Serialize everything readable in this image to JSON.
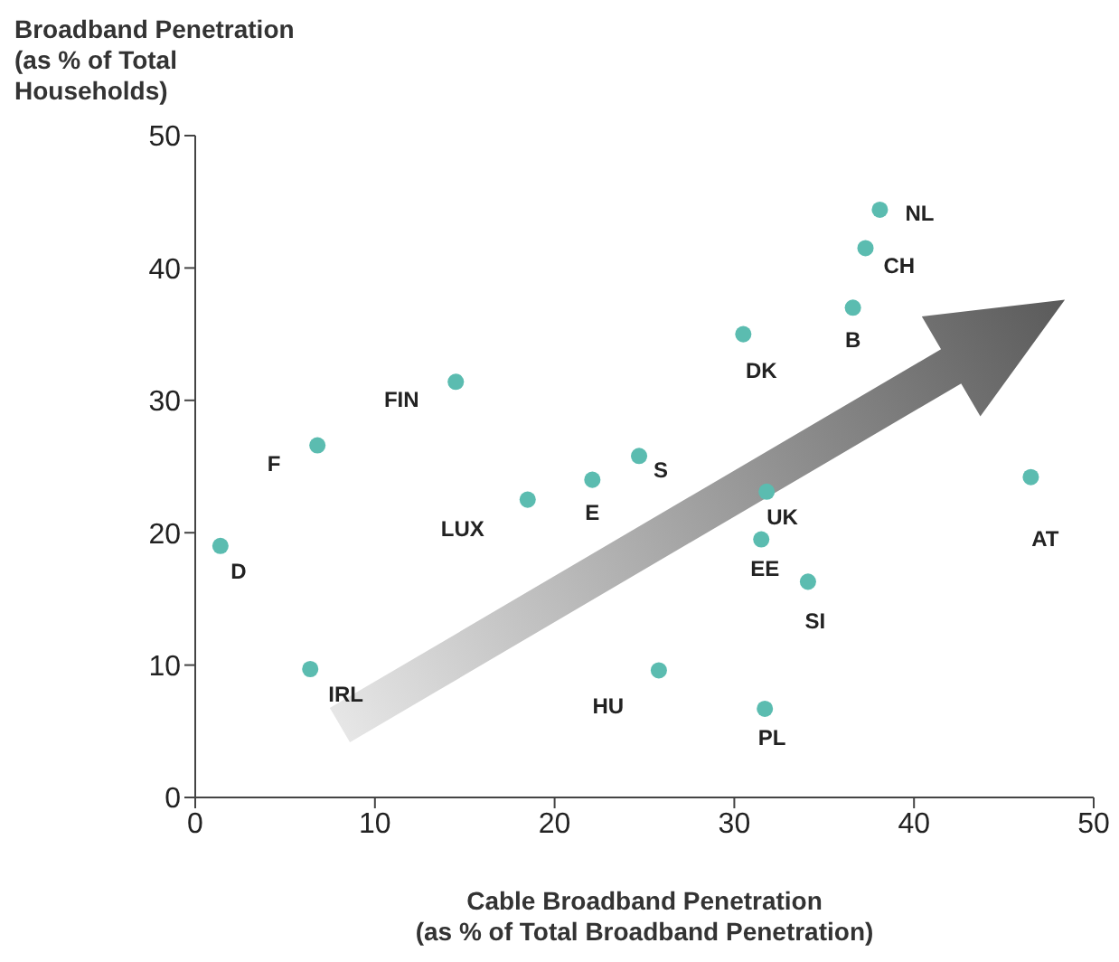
{
  "chart_data": {
    "type": "scatter",
    "xlabel": "Cable Broadband Penetration\n(as % of Total Broadband Penetration)",
    "ylabel": "Broadband Penetration\n(as % of Total\nHouseholds)",
    "x": [
      38.1,
      37.3,
      36.6,
      30.5,
      14.5,
      6.8,
      1.4,
      18.5,
      22.1,
      24.7,
      31.8,
      31.5,
      34.1,
      46.5,
      6.4,
      25.8,
      31.7
    ],
    "values": [
      44.4,
      41.5,
      37.0,
      35.0,
      31.4,
      26.6,
      19.0,
      22.5,
      24.0,
      25.8,
      23.1,
      19.5,
      16.3,
      24.2,
      9.7,
      9.6,
      6.7
    ],
    "annotations": [
      {
        "text": "NL",
        "x": 38.1,
        "y": 44.4
      },
      {
        "text": "CH",
        "x": 37.3,
        "y": 41.5
      },
      {
        "text": "B",
        "x": 36.6,
        "y": 37.0
      },
      {
        "text": "DK",
        "x": 30.5,
        "y": 35.0
      },
      {
        "text": "FIN",
        "x": 14.5,
        "y": 31.4
      },
      {
        "text": "F",
        "x": 6.8,
        "y": 26.6
      },
      {
        "text": "D",
        "x": 1.4,
        "y": 19.0
      },
      {
        "text": "LUX",
        "x": 18.5,
        "y": 22.5
      },
      {
        "text": "E",
        "x": 22.1,
        "y": 24.0
      },
      {
        "text": "S",
        "x": 24.7,
        "y": 25.8
      },
      {
        "text": "UK",
        "x": 31.8,
        "y": 23.1
      },
      {
        "text": "EE",
        "x": 31.5,
        "y": 19.5
      },
      {
        "text": "SI",
        "x": 34.1,
        "y": 16.3
      },
      {
        "text": "AT",
        "x": 46.5,
        "y": 24.2
      },
      {
        "text": "IRL",
        "x": 6.4,
        "y": 9.7
      },
      {
        "text": "HU",
        "x": 25.8,
        "y": 9.6
      },
      {
        "text": "PL",
        "x": 31.7,
        "y": 6.7
      }
    ],
    "color": "#5bbcb0",
    "marker": "circle",
    "xlim": [
      0,
      50
    ],
    "xticks": [
      0,
      10,
      20,
      30,
      40,
      50
    ],
    "ylim": [
      0,
      50
    ],
    "yticks": [
      0,
      10,
      20,
      30,
      40,
      50
    ],
    "grid": false
  }
}
